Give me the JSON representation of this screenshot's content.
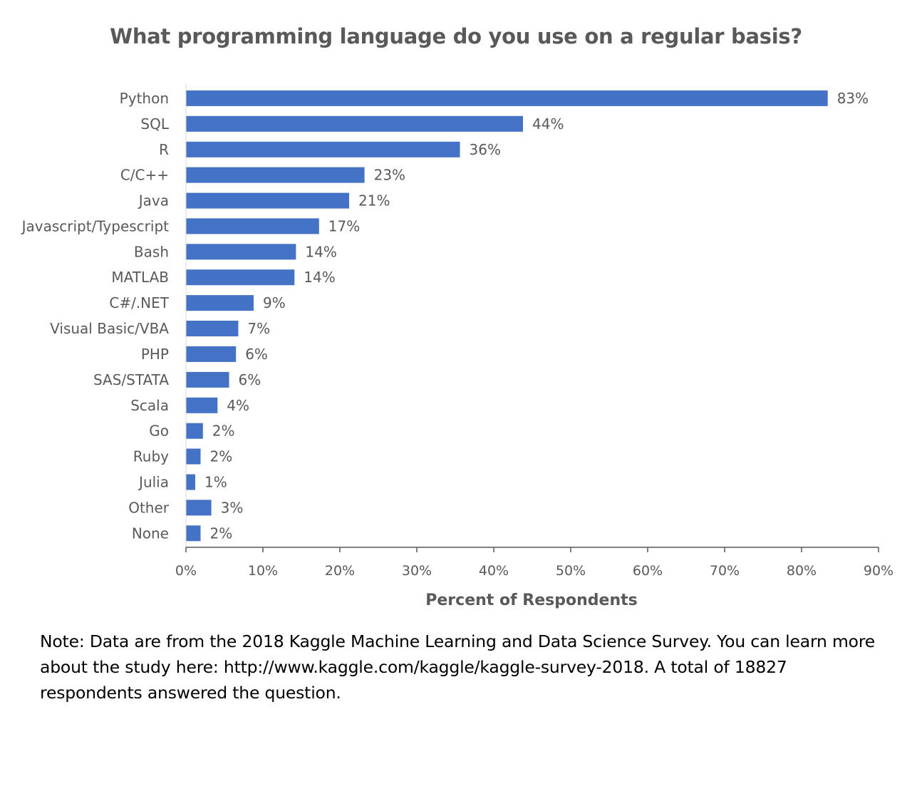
{
  "colors": {
    "bar": "#4472c4",
    "text": "#595959",
    "axis": "#595959",
    "note_text": "#000000"
  },
  "chart_data": {
    "type": "bar",
    "orientation": "horizontal",
    "title": "What programming language do you use on a regular basis?",
    "xlabel": "Percent of Respondents",
    "ylabel": "",
    "xlim": [
      0,
      90
    ],
    "xticks": [
      0,
      10,
      20,
      30,
      40,
      50,
      60,
      70,
      80,
      90
    ],
    "xtick_labels": [
      "0%",
      "10%",
      "20%",
      "30%",
      "40%",
      "50%",
      "60%",
      "70%",
      "80%",
      "90%"
    ],
    "grid": false,
    "legend": "none",
    "categories": [
      "Python",
      "SQL",
      "R",
      "C/C++",
      "Java",
      "Javascript/Typescript",
      "Bash",
      "MATLAB",
      "C#/.NET",
      "Visual Basic/VBA",
      "PHP",
      "SAS/STATA",
      "Scala",
      "Go",
      "Ruby",
      "Julia",
      "Other",
      "None"
    ],
    "values": [
      83.4,
      43.8,
      35.6,
      23.2,
      21.2,
      17.3,
      14.3,
      14.1,
      8.8,
      6.8,
      6.5,
      5.6,
      4.1,
      2.2,
      1.9,
      1.2,
      3.3,
      1.9
    ],
    "data_labels": [
      "83%",
      "44%",
      "36%",
      "23%",
      "21%",
      "17%",
      "14%",
      "14%",
      "9%",
      "7%",
      "6%",
      "6%",
      "4%",
      "2%",
      "2%",
      "1%",
      "3%",
      "2%"
    ]
  },
  "note": "Note: Data are from the 2018 Kaggle Machine Learning and Data Science Survey. You can learn more about the study here: http://www.kaggle.com/kaggle/kaggle-survey-2018.  A total of 18827 respondents answered the question."
}
